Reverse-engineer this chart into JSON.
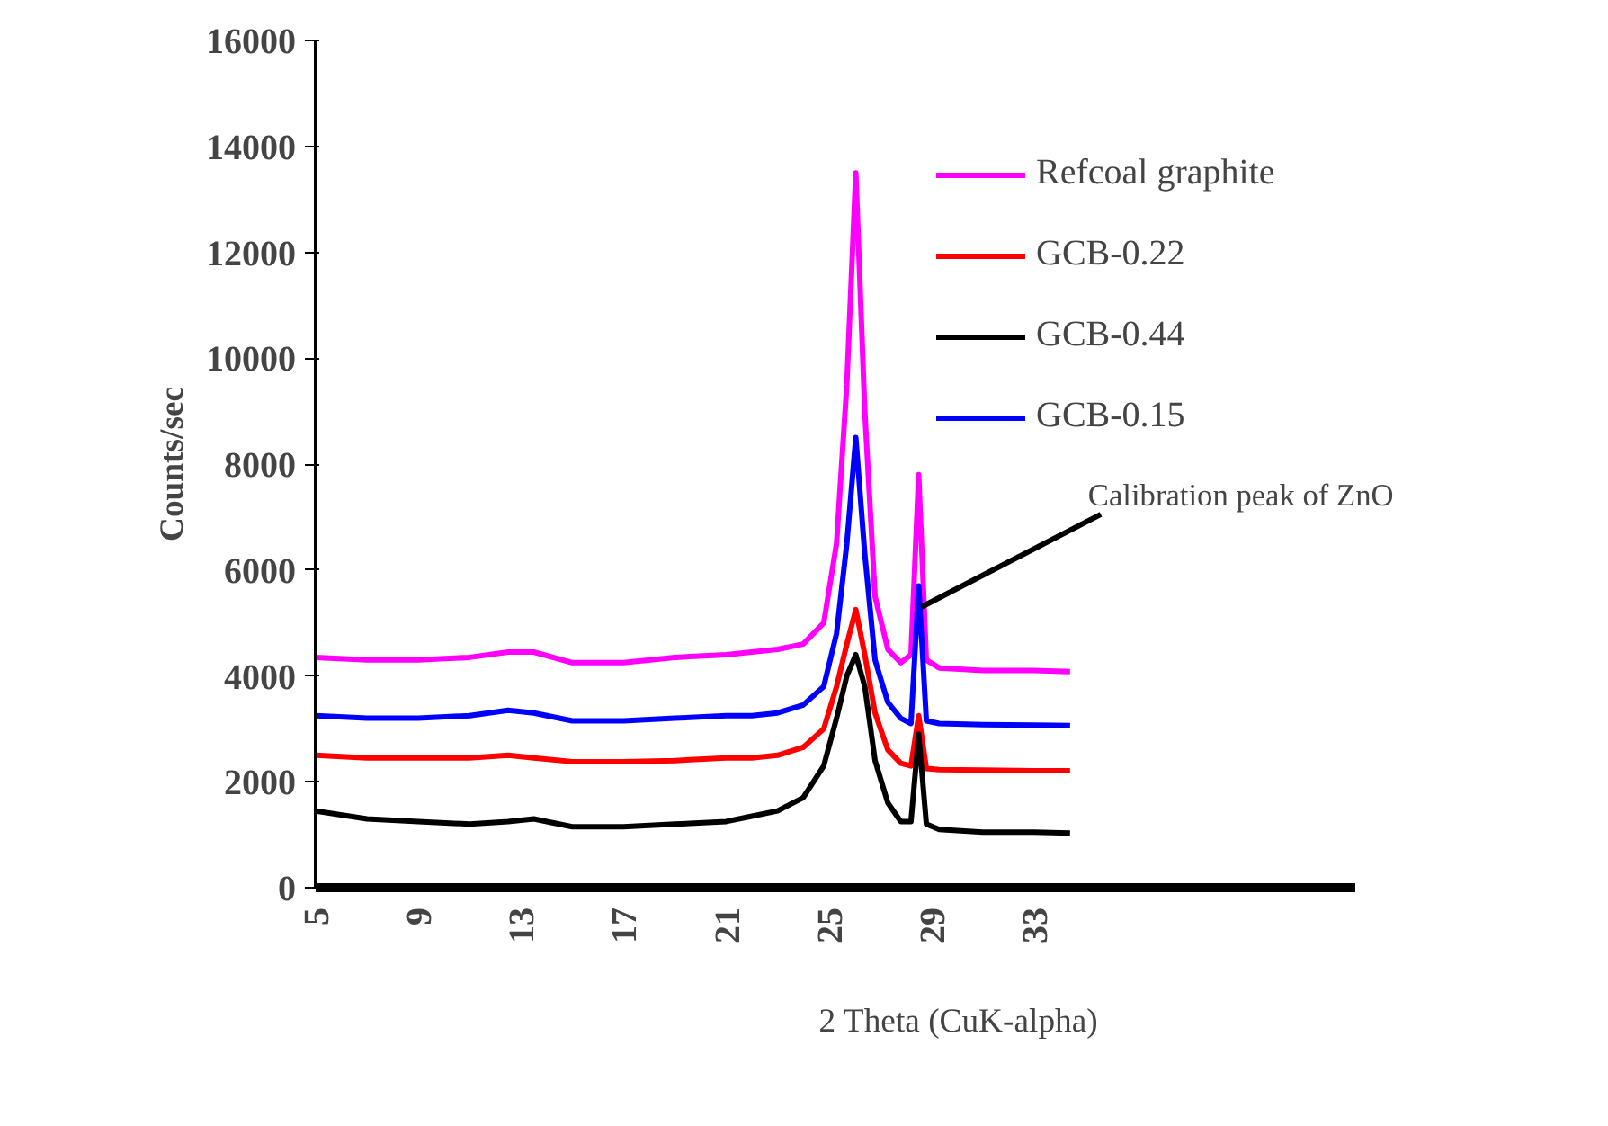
{
  "chart_data": {
    "type": "line",
    "xlabel": "2 Theta (CuK-alpha)",
    "ylabel": "Counts/sec",
    "x": [
      5,
      7,
      9,
      11,
      12.5,
      13.5,
      15,
      17,
      19,
      21,
      22,
      23,
      24,
      24.8,
      25.3,
      25.7,
      26.05,
      26.4,
      26.8,
      27.3,
      27.8,
      28.2,
      28.5,
      28.8,
      29.3,
      31,
      33,
      34.4
    ],
    "series": [
      {
        "name": "Refcoal graphite",
        "color": "#ff00ff",
        "values": [
          4350,
          4300,
          4300,
          4350,
          4450,
          4450,
          4250,
          4250,
          4350,
          4400,
          4450,
          4500,
          4600,
          5000,
          6500,
          9500,
          13500,
          9000,
          5500,
          4500,
          4250,
          4400,
          7800,
          4300,
          4150,
          4100,
          4100,
          4080
        ]
      },
      {
        "name": "GCB-0.22",
        "color": "#ff0000",
        "values": [
          2500,
          2450,
          2450,
          2450,
          2500,
          2450,
          2380,
          2380,
          2400,
          2450,
          2450,
          2500,
          2650,
          3000,
          3800,
          4600,
          5250,
          4400,
          3300,
          2600,
          2350,
          2300,
          3250,
          2250,
          2230,
          2220,
          2210,
          2210
        ]
      },
      {
        "name": "GCB-0.44",
        "color": "#000000",
        "values": [
          1450,
          1300,
          1250,
          1200,
          1250,
          1300,
          1150,
          1150,
          1200,
          1250,
          1350,
          1450,
          1700,
          2300,
          3200,
          4000,
          4400,
          3800,
          2400,
          1600,
          1250,
          1250,
          2900,
          1200,
          1100,
          1050,
          1050,
          1030
        ]
      },
      {
        "name": "GCB-0.15",
        "color": "#0000ff",
        "values": [
          3250,
          3200,
          3200,
          3250,
          3350,
          3300,
          3150,
          3150,
          3200,
          3250,
          3250,
          3300,
          3450,
          3800,
          4800,
          6500,
          8500,
          6300,
          4300,
          3500,
          3200,
          3100,
          5700,
          3150,
          3100,
          3080,
          3070,
          3060
        ]
      }
    ],
    "xlim": [
      5,
      45.5
    ],
    "xticks": [
      5,
      9,
      13,
      17,
      21,
      25,
      29,
      33
    ],
    "ylim": [
      0,
      16000
    ],
    "yticks": [
      0,
      2000,
      4000,
      6000,
      8000,
      10000,
      12000,
      14000,
      16000
    ],
    "annotations": [
      {
        "text": "Calibration peak of ZnO",
        "x": 28.6,
        "y": 5300
      }
    ],
    "grid": false,
    "legend": "top right",
    "line_style": "solid",
    "marker": "none"
  }
}
